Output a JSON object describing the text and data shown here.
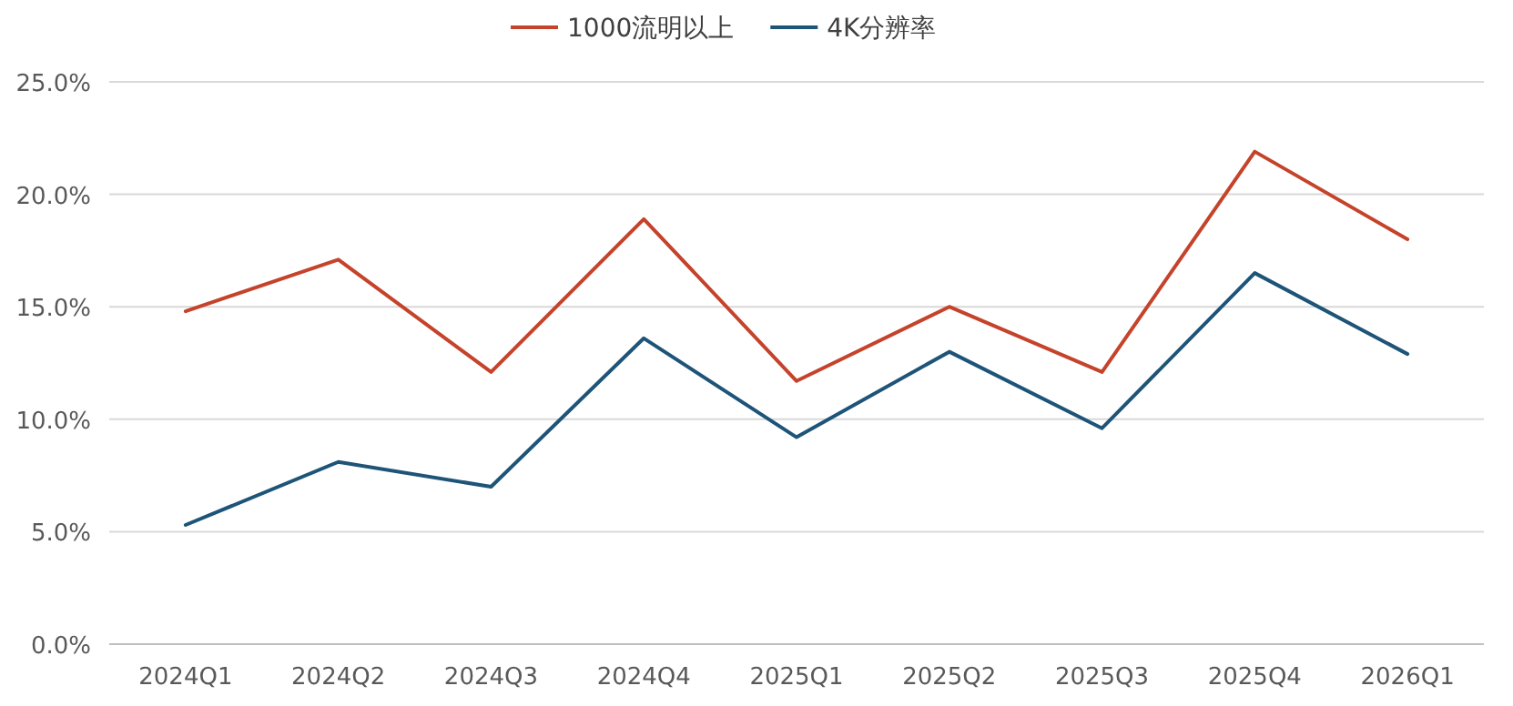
{
  "chart_data": {
    "type": "line",
    "categories": [
      "2024Q1",
      "2024Q2",
      "2024Q3",
      "2024Q4",
      "2025Q1",
      "2025Q2",
      "2025Q3",
      "2025Q4",
      "2026Q1"
    ],
    "series": [
      {
        "name": "1000流明以上",
        "color": "#c5432b",
        "values": [
          14.8,
          17.1,
          12.1,
          18.9,
          11.7,
          15.0,
          12.1,
          21.9,
          18.0
        ]
      },
      {
        "name": "4K分辨率",
        "color": "#1d5478",
        "values": [
          5.3,
          8.1,
          7.0,
          13.6,
          9.2,
          13.0,
          9.6,
          16.5,
          12.9
        ]
      }
    ],
    "ylim": [
      0,
      25
    ],
    "yticks": [
      {
        "value": 0,
        "label": "0.0%"
      },
      {
        "value": 5,
        "label": "5.0%"
      },
      {
        "value": 10,
        "label": "10.0%"
      },
      {
        "value": 15,
        "label": "15.0%"
      },
      {
        "value": 20,
        "label": "20.0%"
      },
      {
        "value": 25,
        "label": "25.0%"
      }
    ],
    "grid": "y",
    "legend": "top",
    "marker": "none",
    "line_style": "solid"
  }
}
